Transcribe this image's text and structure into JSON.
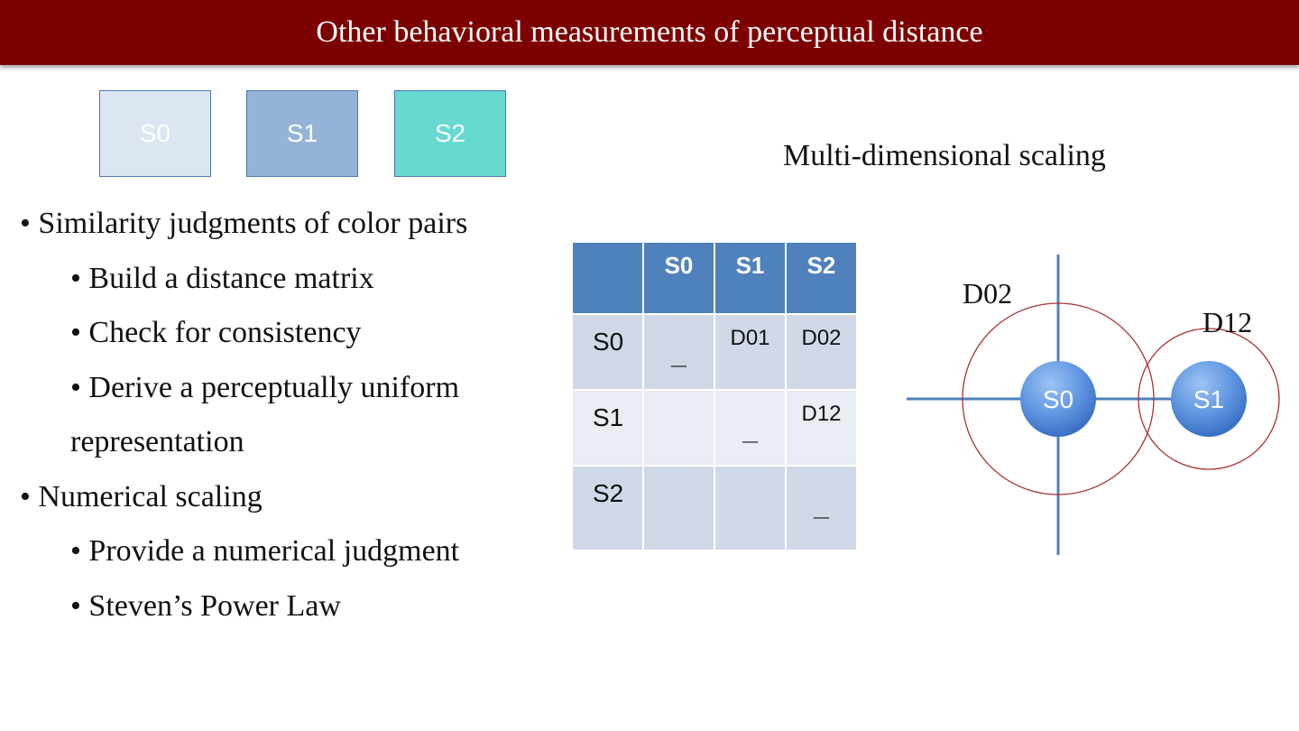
{
  "title": "Other behavioral measurements of perceptual distance",
  "swatches": [
    {
      "label": "S0",
      "color": "#dce6f2"
    },
    {
      "label": "S1",
      "color": "#95b3d7"
    },
    {
      "label": "S2",
      "color": "#66d9d0"
    }
  ],
  "bullets": {
    "b1": "• Similarity judgments of color pairs",
    "b1a": "• Build a distance matrix",
    "b1b": "• Check for consistency",
    "b1c": "• Derive a perceptually uniform",
    "b1c_cont": "representation",
    "b2": "• Numerical scaling",
    "b2a": "• Provide a numerical judgment",
    "b2b": "• Steven’s Power Law"
  },
  "mds_label": "Multi-dimensional scaling",
  "matrix": {
    "headers": [
      "",
      "S0",
      "S1",
      "S2"
    ],
    "rows": [
      [
        "S0",
        "_",
        "D01",
        "D02"
      ],
      [
        "S1",
        "",
        "_",
        "D12"
      ],
      [
        "S2",
        "",
        "",
        "_"
      ]
    ]
  },
  "diagram": {
    "circle_label_d02": "D02",
    "circle_label_d12": "D12",
    "node_s0": "S0",
    "node_s1": "S1",
    "axis_color": "#4f81bd",
    "circle_color": "#a83232",
    "node_color": "#4f81bd"
  }
}
